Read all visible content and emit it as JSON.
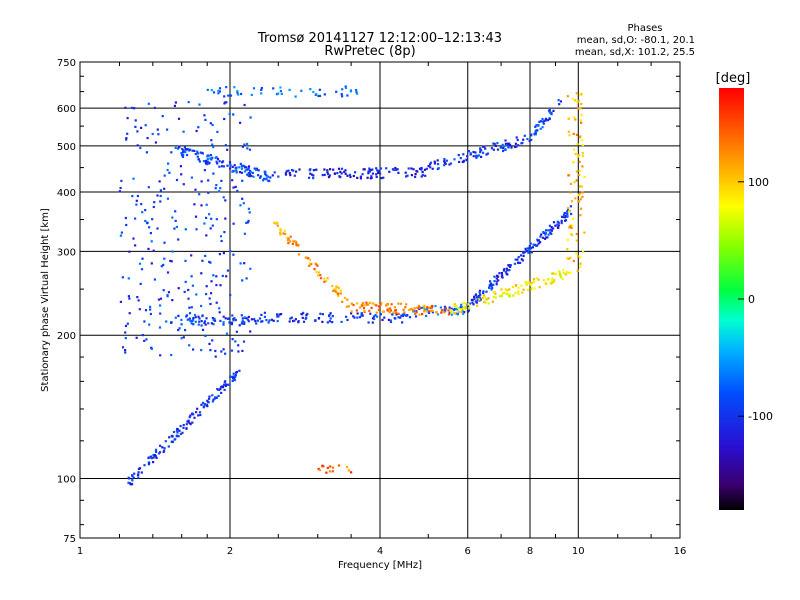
{
  "chart_data": {
    "type": "scatter",
    "title": "Tromsø 20141127 12:12:00–12:13:43",
    "subtitle": "RwPretec (8p)",
    "xlabel": "Frequency [MHz]",
    "ylabel": "Stationary phase Virtual Height [km]",
    "x_scale": "log",
    "y_scale": "log",
    "xlim": [
      1,
      16
    ],
    "ylim": [
      75,
      750
    ],
    "x_ticks": [
      1,
      2,
      4,
      6,
      8,
      10,
      16
    ],
    "x_tick_labels": [
      "1",
      "2",
      "4",
      "6",
      "8",
      "10",
      "16"
    ],
    "y_ticks": [
      75,
      100,
      200,
      300,
      400,
      500,
      600,
      750
    ],
    "y_tick_labels": [
      "75",
      "100",
      "200",
      "300",
      "400",
      "500",
      "600",
      "750"
    ],
    "grid": true,
    "stats": {
      "heading": "Phases",
      "line_o": "mean, sd,O: -80.1, 20.1",
      "line_x": "mean, sd,X: 101.2, 25.5"
    },
    "colorbar": {
      "label": "[deg]",
      "range": [
        -180,
        180
      ],
      "ticks": [
        100,
        0,
        -100
      ],
      "tick_labels": [
        "100",
        "0",
        "-100"
      ]
    },
    "series": [
      {
        "x_range": [
          1.52,
          2.3
        ],
        "y": 215,
        "phase": -95,
        "n": 70
      },
      {
        "x_range": [
          2.3,
          4.5
        ],
        "y": 218,
        "phase": -100,
        "n": 90
      },
      {
        "x_range": [
          4.5,
          6.0
        ],
        "y_range": [
          222,
          228
        ],
        "phase": -80,
        "n": 50
      },
      {
        "x_range": [
          6.0,
          9.8
        ],
        "y_range": [
          230,
          370
        ],
        "phase": -100,
        "n": 150
      },
      {
        "x_range": [
          2.45,
          3.5
        ],
        "y_range": [
          345,
          230
        ],
        "phase": 120,
        "n": 70
      },
      {
        "x_range": [
          3.5,
          5.5
        ],
        "y_range": [
          230,
          225
        ],
        "phase": 130,
        "n": 90
      },
      {
        "x_range": [
          5.5,
          9.5
        ],
        "y_range": [
          225,
          270
        ],
        "phase": 85,
        "n": 110
      },
      {
        "x_range": [
          9.5,
          10.3
        ],
        "y_range": [
          270,
          650
        ],
        "phase": 105,
        "n": 90
      },
      {
        "x_range": [
          1.55,
          2.4
        ],
        "y_range": [
          490,
          430
        ],
        "phase": -90,
        "n": 120
      },
      {
        "x_range": [
          2.4,
          5.0
        ],
        "y_range": [
          435,
          440
        ],
        "phase": -110,
        "n": 110
      },
      {
        "x_range": [
          5.0,
          8.0
        ],
        "y_range": [
          450,
          520
        ],
        "phase": -100,
        "n": 90
      },
      {
        "x_range": [
          8.0,
          9.3
        ],
        "y_range": [
          520,
          630
        ],
        "phase": -90,
        "n": 40
      },
      {
        "x_range": [
          1.8,
          3.7
        ],
        "y": 650,
        "phase": -75,
        "n": 50
      },
      {
        "x_range": [
          1.2,
          2.2
        ],
        "y_range": [
          180,
          620
        ],
        "phase": -95,
        "n": 300
      },
      {
        "x_range": [
          1.25,
          2.1
        ],
        "y_range": [
          98,
          170
        ],
        "phase": -100,
        "n": 140
      },
      {
        "x_range": [
          3.0,
          3.5
        ],
        "y": 105,
        "phase": 140,
        "n": 15
      }
    ]
  }
}
